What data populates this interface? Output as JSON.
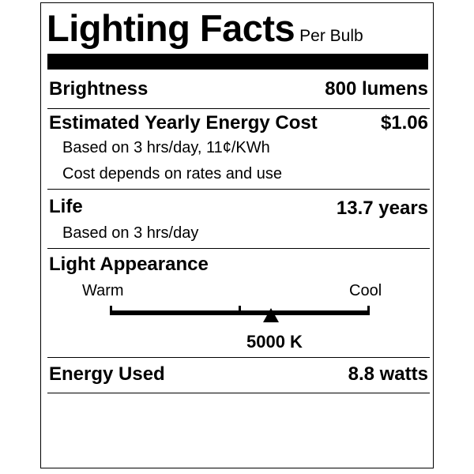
{
  "header": {
    "title": "Lighting Facts",
    "subtitle": "Per Bulb"
  },
  "brightness": {
    "label": "Brightness",
    "value": "800 lumens"
  },
  "energy_cost": {
    "label": "Estimated Yearly Energy Cost",
    "value": "$1.06",
    "notes": [
      "Based on 3 hrs/day, 11¢/KWh",
      "Cost depends on rates and use"
    ]
  },
  "life": {
    "label": "Life",
    "value": "13.7 years",
    "note": "Based on 3 hrs/day"
  },
  "light_appearance": {
    "label": "Light Appearance",
    "warm_label": "Warm",
    "cool_label": "Cool",
    "value": "5000 K",
    "marker_position": 0.62
  },
  "energy_used": {
    "label": "Energy Used",
    "value": "8.8 watts"
  }
}
